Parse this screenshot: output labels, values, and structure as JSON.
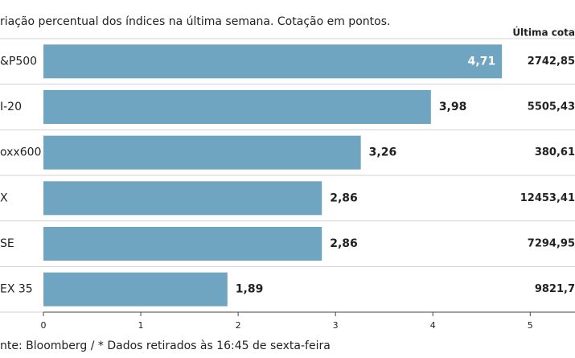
{
  "chart_data": {
    "type": "bar",
    "orientation": "horizontal",
    "subtitle": "riação percentual dos índices na última semana. Cotação em pontos.",
    "categories": [
      "&P500",
      "I-20",
      "oxx600",
      "X",
      "SE",
      "EX 35"
    ],
    "values": [
      4.71,
      3.98,
      3.26,
      2.86,
      2.86,
      1.89
    ],
    "value_labels": [
      "4,71",
      "3,98",
      "3,26",
      "2,86",
      "2,86",
      "1,89"
    ],
    "color": "#6fa5c0",
    "quote_header": "Última cota",
    "quotes": [
      "2742,85",
      "5505,43",
      "380,61",
      "12453,41",
      "7294,95",
      "9821,7"
    ],
    "xlim": [
      0,
      5.46
    ],
    "xticks": [
      0,
      1,
      2,
      3,
      4,
      5
    ],
    "source": "nte: Bloomberg / * Dados retirados às 16:45 de sexta-feira"
  }
}
